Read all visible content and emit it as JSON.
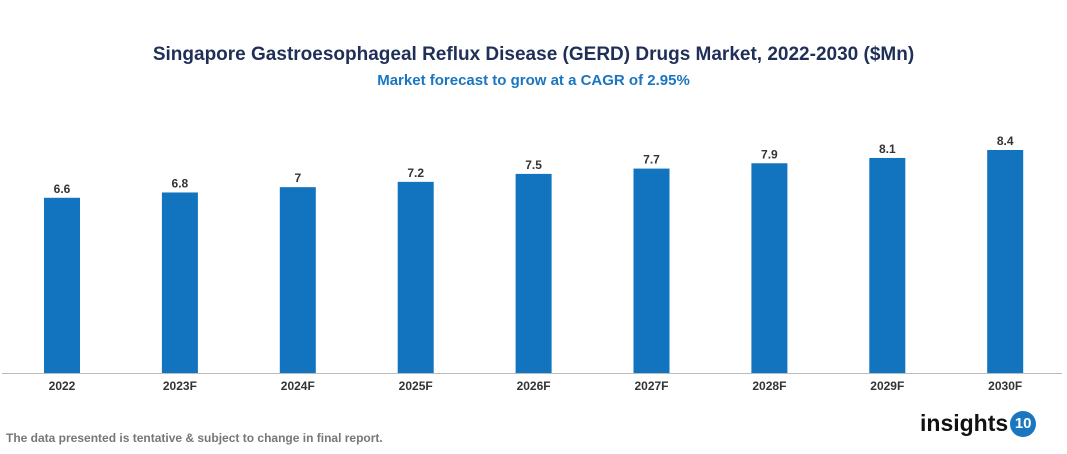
{
  "chart_data": {
    "type": "bar",
    "title": "Singapore Gastroesophageal Reflux Disease (GERD) Drugs Market, 2022-2030 ($Mn)",
    "subtitle": "Market forecast to grow at a CAGR of 2.95%",
    "categories": [
      "2022",
      "2023F",
      "2024F",
      "2025F",
      "2026F",
      "2027F",
      "2028F",
      "2029F",
      "2030F"
    ],
    "values": [
      6.6,
      6.8,
      7,
      7.2,
      7.5,
      7.7,
      7.9,
      8.1,
      8.4
    ],
    "data_labels": [
      "6.6",
      "6.8",
      "7",
      "7.2",
      "7.5",
      "7.7",
      "7.9",
      "8.1",
      "8.4"
    ],
    "xlabel": "",
    "ylabel": "",
    "ylim": [
      0,
      8.4
    ],
    "grid": false,
    "bar_color": "#1273bf"
  },
  "footer": {
    "note": "The data presented is tentative & subject to change in final report."
  },
  "logo": {
    "text": "insights",
    "badge": "10"
  }
}
